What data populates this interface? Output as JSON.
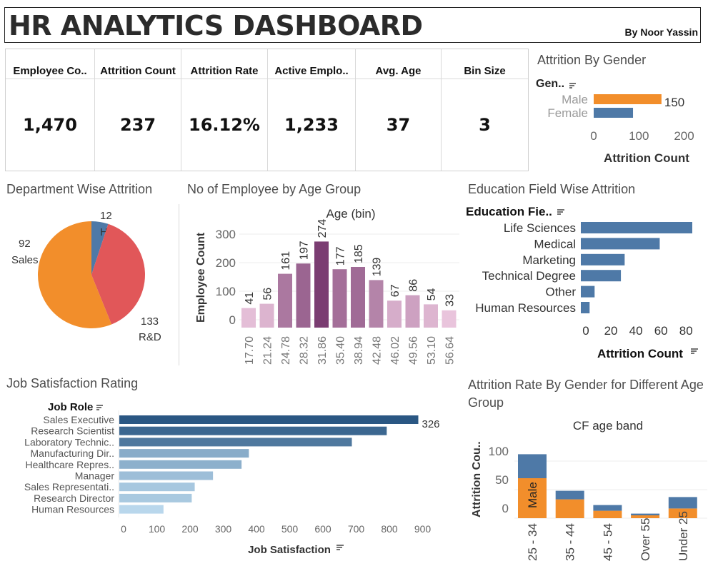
{
  "header": {
    "title": "HR ANALYTICS DASHBOARD",
    "author": "By Noor Yassin"
  },
  "kpis": [
    {
      "label": "Employee Co..",
      "value": "1,470"
    },
    {
      "label": "Attrition Count",
      "value": "237"
    },
    {
      "label": "Attrition Rate",
      "value": "16.12%"
    },
    {
      "label": "Active Emplo..",
      "value": "1,233"
    },
    {
      "label": "Avg. Age",
      "value": "37"
    },
    {
      "label": "Bin Size",
      "value": "3"
    }
  ],
  "sections": {
    "gender": "Attrition By Gender",
    "department": "Department Wise Attrition",
    "age": "No of Employee by Age Group",
    "education": "Education Field Wise Attrition",
    "jobsat": "Job Satisfaction Rating",
    "agegender": "Attrition Rate By Gender for Different Age Group"
  },
  "colors": {
    "blue": "#4e79a7",
    "orange": "#f28e2b",
    "red": "#e15759",
    "sort_icon": "sort-icon"
  },
  "chart_data": [
    {
      "id": "gender",
      "type": "bar",
      "orientation": "horizontal",
      "dimension_label": "Gen..",
      "xlabel": "Attrition Count",
      "categories": [
        "Male",
        "Female"
      ],
      "values": [
        150,
        87
      ],
      "colors": [
        "#f28e2b",
        "#4e79a7"
      ],
      "data_label": "150",
      "xticks": [
        0,
        100,
        200
      ],
      "xlim": [
        0,
        215
      ]
    },
    {
      "id": "department",
      "type": "pie",
      "categories": [
        "HR",
        "Sales",
        "R&D"
      ],
      "values": [
        12,
        92,
        133
      ],
      "colors": [
        "#4e79a7",
        "#e15759",
        "#f28e2b"
      ]
    },
    {
      "id": "age",
      "type": "bar",
      "title": "Age (bin)",
      "ylabel": "Employee Count",
      "categories": [
        "17.70",
        "21.24",
        "24.78",
        "28.32",
        "31.86",
        "35.40",
        "38.94",
        "42.48",
        "46.02",
        "49.56",
        "53.10",
        "56.64"
      ],
      "values": [
        41,
        56,
        161,
        197,
        274,
        177,
        185,
        139,
        67,
        86,
        54,
        33
      ],
      "yticks": [
        0,
        100,
        200,
        300
      ],
      "ylim": [
        0,
        300
      ],
      "color_scale": [
        "#e9c4dc",
        "#7b3d72"
      ]
    },
    {
      "id": "education",
      "type": "bar",
      "orientation": "horizontal",
      "dimension_label": "Education Fie..",
      "xlabel": "Attrition Count",
      "categories": [
        "Life Sciences",
        "Medical",
        "Marketing",
        "Technical Degree",
        "Other",
        "Human Resources"
      ],
      "values": [
        89,
        63,
        35,
        32,
        11,
        7
      ],
      "xticks": [
        0,
        20,
        40,
        60,
        80
      ],
      "xlim": [
        0,
        93
      ],
      "color": "#4e79a7"
    },
    {
      "id": "jobsat",
      "type": "bar",
      "orientation": "horizontal",
      "dimension_label": "Job Role",
      "xlabel": "Job Satisfaction",
      "categories": [
        "Sales Executive",
        "Research Scientist",
        "Laboratory Technic..",
        "Manufacturing Dir..",
        "Healthcare Repres..",
        "Manager",
        "Sales Representati..",
        "Research Director",
        "Human Resources"
      ],
      "values": [
        900,
        805,
        700,
        390,
        368,
        282,
        227,
        218,
        133
      ],
      "data_label": "326",
      "xticks": [
        0,
        100,
        200,
        300,
        400,
        500,
        600,
        700,
        800,
        900
      ],
      "xlim": [
        0,
        1000
      ],
      "color_scale": [
        "#b9d7ec",
        "#2a5783"
      ]
    },
    {
      "id": "agegender",
      "type": "bar",
      "stacked": true,
      "title": "CF age band",
      "ylabel": "Attrition Cou..",
      "categories": [
        "25 - 34",
        "35 - 44",
        "45 - 54",
        "Over 55",
        "Under 25"
      ],
      "series": [
        {
          "name": "Male",
          "values": [
            70,
            33,
            13,
            5,
            17
          ]
        },
        {
          "values": [
            42,
            15,
            10,
            3,
            20
          ]
        }
      ],
      "series_colors": [
        "#f28e2b",
        "#4e79a7"
      ],
      "yticks": [
        0,
        50,
        100
      ],
      "ylim": [
        -13,
        140
      ]
    }
  ]
}
